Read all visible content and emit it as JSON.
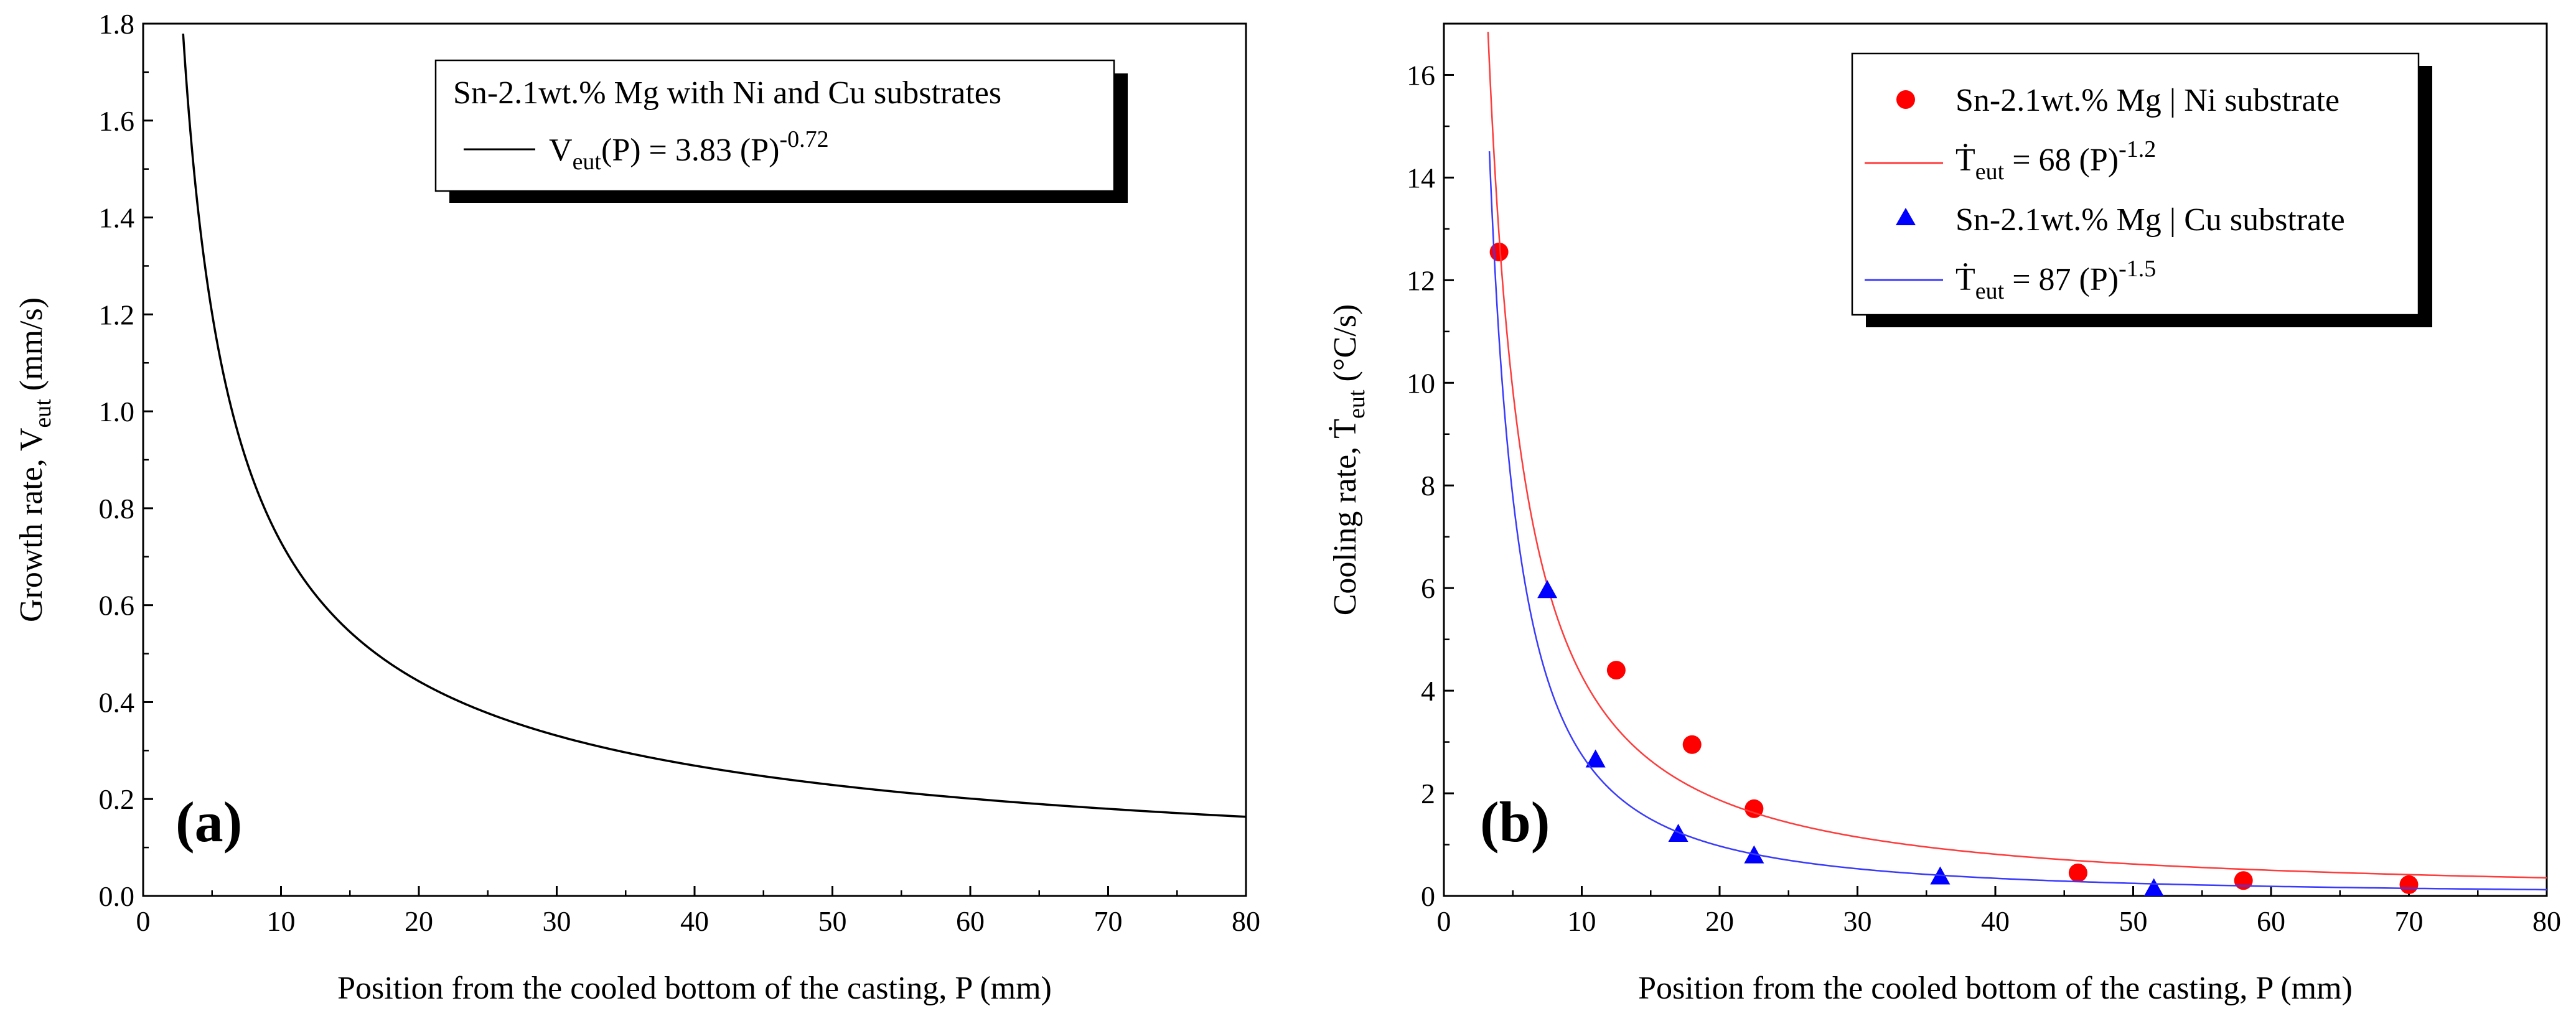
{
  "charts": [
    {
      "panel_label": "(a)",
      "xlabel": "Position from the cooled bottom of the casting, P (mm)",
      "ylabel": {
        "main": "Growth rate, V",
        "sub": "eut",
        "unit": " (mm/s)"
      },
      "legend_title": "Sn-2.1wt.% Mg with Ni and Cu substrates",
      "legend_entries": [
        {
          "lhs": "V",
          "sub": "eut",
          "mid": "(P) = 3.83 (P)",
          "sup": "-0.72"
        }
      ],
      "xticks": [
        "0",
        "10",
        "20",
        "30",
        "40",
        "50",
        "60",
        "70",
        "80"
      ],
      "yticks": [
        "0.0",
        "0.2",
        "0.4",
        "0.6",
        "0.8",
        "1.0",
        "1.2",
        "1.4",
        "1.6",
        "1.8"
      ]
    },
    {
      "panel_label": "(b)",
      "xlabel": "Position from the cooled bottom of the casting, P (mm)",
      "ylabel": {
        "main": "Cooling rate, Ṫ",
        "sub": "eut",
        "unit": " (°C/s)"
      },
      "legend_entries": [
        {
          "text": "Sn-2.1wt.% Mg | Ni substrate"
        },
        {
          "lhs": "Ṫ",
          "sub": "eut",
          "mid": " = 68 (P)",
          "sup": "-1.2"
        },
        {
          "text": "Sn-2.1wt.% Mg | Cu substrate"
        },
        {
          "lhs": "Ṫ",
          "sub": "eut",
          "mid": " = 87 (P)",
          "sup": "-1.5"
        }
      ],
      "xticks": [
        "0",
        "10",
        "20",
        "30",
        "40",
        "50",
        "60",
        "70",
        "80"
      ],
      "yticks": [
        "0",
        "2",
        "4",
        "6",
        "8",
        "10",
        "12",
        "14",
        "16"
      ]
    }
  ],
  "chart_data": [
    {
      "type": "line",
      "title": "",
      "xlim": [
        0,
        80
      ],
      "ylim": [
        0,
        1.8
      ],
      "series": [
        {
          "name": "V_eut(P) = 3.83 (P)^-0.72",
          "kind": "power-fit",
          "a": 3.83,
          "b": -0.72,
          "x_range": [
            2.9,
            80
          ],
          "color": "#000000"
        }
      ]
    },
    {
      "type": "scatter",
      "title": "",
      "xlim": [
        0,
        80
      ],
      "ylim": [
        0,
        17
      ],
      "series": [
        {
          "name": "Sn-2.1wt.% Mg | Ni substrate",
          "kind": "points",
          "marker": "circle",
          "color": "#ff0000",
          "x": [
            4,
            12.5,
            18,
            22.5,
            46,
            58,
            70
          ],
          "y": [
            12.55,
            4.4,
            2.95,
            1.7,
            0.45,
            0.3,
            0.22
          ]
        },
        {
          "name": "Ṫ_eut = 68 (P)^-1.2",
          "kind": "power-fit",
          "a": 68,
          "b": -1.2,
          "x_range": [
            3.2,
            80
          ],
          "color": "#ff3b3b"
        },
        {
          "name": "Sn-2.1wt.% Mg | Cu substrate",
          "kind": "points",
          "marker": "triangle",
          "color": "#0000ff",
          "x": [
            7.5,
            11,
            17,
            22.5,
            36,
            51.5
          ],
          "y": [
            5.95,
            2.65,
            1.2,
            0.78,
            0.37,
            0.14
          ]
        },
        {
          "name": "Ṫ_eut = 87 (P)^-1.5",
          "kind": "power-fit",
          "a": 87,
          "b": -1.5,
          "x_range": [
            3.3,
            80
          ],
          "color": "#3a3aff"
        }
      ]
    }
  ]
}
